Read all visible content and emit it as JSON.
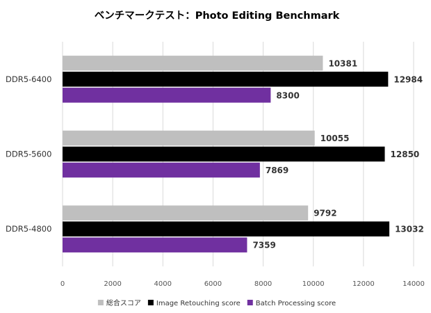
{
  "chart_data": {
    "type": "bar",
    "orientation": "horizontal",
    "title": "ベンチマークテスト：Photo Editing Benchmark",
    "categories": [
      "DDR5-6400",
      "DDR5-5600",
      "DDR5-4800"
    ],
    "series": [
      {
        "name": "総合スコア",
        "color": "#bfbfbf",
        "values": [
          10381,
          10055,
          9792
        ]
      },
      {
        "name": "Image Retouching score",
        "color": "#000000",
        "values": [
          12984,
          12850,
          13032
        ]
      },
      {
        "name": "Batch Processing score",
        "color": "#7030a0",
        "values": [
          8300,
          7869,
          7359
        ]
      }
    ],
    "xlim": [
      0,
      14000
    ],
    "xticks": [
      0,
      2000,
      4000,
      6000,
      8000,
      10000,
      12000,
      14000
    ],
    "grid": true,
    "legend": "bottom",
    "data_labels": true
  }
}
